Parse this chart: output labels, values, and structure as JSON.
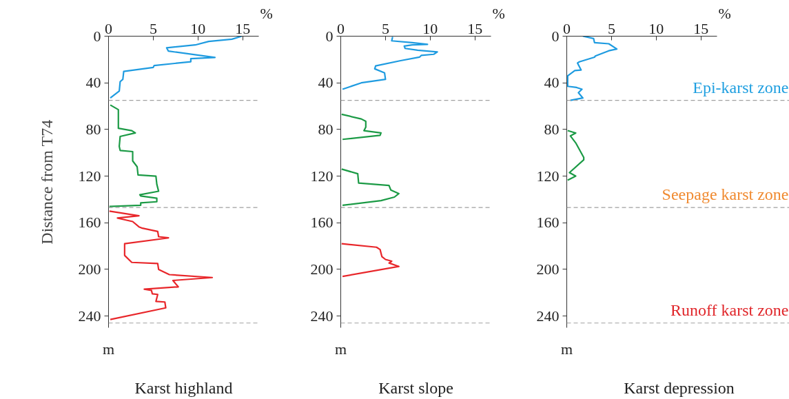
{
  "chart_data": [
    {
      "type": "line",
      "xlabel": "Karst highland",
      "ylabel": "Distance from T74",
      "xlim": [
        0,
        16.8
      ],
      "ylim": [
        250,
        0
      ],
      "xticks": [
        0,
        5,
        10,
        15
      ],
      "yticks": [
        0,
        40,
        80,
        120,
        160,
        200,
        240
      ],
      "grid": false,
      "line_style": "solid",
      "marker": "none",
      "annotations": [
        "%",
        "m"
      ],
      "ref_lines": [
        {
          "axis": "y",
          "value": 55,
          "color": "#a0a0a0",
          "line_style": "dashed"
        },
        {
          "axis": "y",
          "value": 147,
          "color": "#a0a0a0",
          "line_style": "dashed"
        },
        {
          "axis": "y",
          "value": 246,
          "color": "#a0a0a0",
          "line_style": "dashed"
        }
      ],
      "series": [
        {
          "color": "#1e9be0",
          "x": [
            14.9,
            13.8,
            11.2,
            9.7,
            6.5,
            6.7,
            11.9,
            9.2,
            9.2,
            5.1,
            5.0,
            1.7,
            1.6,
            1.3,
            1.2,
            0.2
          ],
          "values": [
            0,
            2.6,
            4.5,
            7.5,
            10,
            12.8,
            18.3,
            19.3,
            21.9,
            25.2,
            26.8,
            30.2,
            37,
            39,
            47,
            53
          ]
        },
        {
          "color": "#1b9a45",
          "x": [
            0.2,
            1.1,
            1.1,
            2.6,
            3.0,
            1.3,
            1.2,
            1.3,
            2.7,
            2.7,
            3.2,
            3.3,
            5.3,
            5.4,
            5.6,
            3.5,
            3.6,
            5.4,
            5.4,
            3.6,
            3.6,
            0.1
          ],
          "values": [
            59,
            63,
            79,
            81,
            83,
            86,
            94.5,
            98,
            99,
            107,
            112,
            119,
            120,
            127,
            133,
            136,
            137,
            139,
            142,
            143,
            145,
            146
          ]
        },
        {
          "color": "#e8262a",
          "x": [
            0.1,
            3.4,
            1.0,
            2.7,
            3.4,
            3.7,
            5.5,
            5.6,
            6.7,
            1.8,
            1.8,
            2.6,
            5.5,
            5.6,
            6.8,
            11.6,
            7.2,
            7.8,
            4.0,
            4.8,
            4.9,
            5.5,
            5.3,
            6.3,
            6.4,
            0.2
          ],
          "values": [
            150,
            154,
            156,
            159,
            163.5,
            164.5,
            167.5,
            172,
            173,
            178,
            188,
            194,
            195,
            200,
            204.5,
            207,
            209.5,
            215,
            217,
            218,
            221,
            221.5,
            227.5,
            228,
            233,
            243
          ]
        }
      ]
    },
    {
      "type": "line",
      "xlabel": "Karst slope",
      "xlim": [
        0,
        16.8
      ],
      "ylim": [
        250,
        0
      ],
      "xticks": [
        0,
        5,
        10,
        15
      ],
      "yticks": [
        0,
        40,
        80,
        120,
        160,
        200,
        240
      ],
      "grid": false,
      "line_style": "solid",
      "marker": "none",
      "annotations": [
        "%",
        "m"
      ],
      "ref_lines": [
        {
          "axis": "y",
          "value": 55,
          "color": "#a0a0a0",
          "line_style": "dashed"
        },
        {
          "axis": "y",
          "value": 147,
          "color": "#a0a0a0",
          "line_style": "dashed"
        },
        {
          "axis": "y",
          "value": 246,
          "color": "#a0a0a0",
          "line_style": "dashed"
        }
      ],
      "series": [
        {
          "color": "#1e9be0",
          "x": [
            5.8,
            5.7,
            8.0,
            9.7,
            8.0,
            7.1,
            7.2,
            8.6,
            10.8,
            10.4,
            9.0,
            8.8,
            6.7,
            3.9,
            3.8,
            4.9,
            5.0,
            2.3,
            0.2
          ],
          "values": [
            0.6,
            4,
            5.5,
            7,
            7.5,
            8.5,
            10.5,
            12,
            13.5,
            15.5,
            16.5,
            18,
            21,
            25.5,
            28,
            31.5,
            37,
            40,
            45.5
          ]
        },
        {
          "color": "#1b9a45",
          "x": [
            0.1,
            2.3,
            2.8,
            2.8,
            2.6,
            4.5,
            4.4,
            0.2,
            null,
            0.1,
            1.9,
            2.0,
            5.4,
            5.6,
            6.5,
            6.0,
            4.5,
            0.2
          ],
          "values": [
            67,
            71,
            73,
            78,
            81,
            83,
            85,
            88.5,
            null,
            114,
            118,
            126,
            128,
            132,
            135,
            138,
            141,
            145
          ]
        },
        {
          "color": "#e8262a",
          "x": [
            0.1,
            4.0,
            4.4,
            4.6,
            5.0,
            5.7,
            5.4,
            6.5,
            0.2
          ],
          "values": [
            178,
            181,
            183,
            189,
            191.5,
            193,
            194.5,
            197.5,
            206
          ]
        }
      ]
    },
    {
      "type": "line",
      "xlabel": "Karst depression",
      "xlim": [
        0,
        16.8
      ],
      "ylim": [
        250,
        0
      ],
      "xticks": [
        0,
        5,
        10,
        15
      ],
      "yticks": [
        0,
        40,
        80,
        120,
        160,
        200,
        240
      ],
      "grid": false,
      "line_style": "solid",
      "marker": "none",
      "annotations": [
        "%",
        "m"
      ],
      "ref_lines": [
        {
          "axis": "y",
          "value": 55,
          "color": "#a0a0a0",
          "line_style": "dashed",
          "label": "Epi-karst zone"
        },
        {
          "axis": "y",
          "value": 147,
          "color": "#a0a0a0",
          "line_style": "dashed",
          "label": "Seepage karst zone"
        },
        {
          "axis": "y",
          "value": 246,
          "color": "#a0a0a0",
          "line_style": "dashed",
          "label": "Runoff karst zone"
        }
      ],
      "series": [
        {
          "color": "#1e9be0",
          "x": [
            1.8,
            3.0,
            3.1,
            4.7,
            5.6,
            4.7,
            3.2,
            3.1,
            1.4,
            1.2,
            1.6,
            0.9,
            0.1,
            0.1,
            0.1,
            1.1,
            1.7,
            1.3,
            1.8,
            0.4
          ],
          "values": [
            0,
            2,
            5.5,
            6.5,
            11,
            12.5,
            17,
            18,
            22,
            23,
            29,
            29.5,
            34,
            39.5,
            43,
            44,
            45.5,
            48.5,
            53,
            55
          ]
        },
        {
          "color": "#1b9a45",
          "x": [
            0.1,
            1.0,
            0.4,
            1.0,
            1.9,
            1.9,
            0.3,
            1.0,
            0.1
          ],
          "values": [
            81,
            83,
            85.5,
            91.5,
            104,
            106,
            117,
            120,
            123.5
          ]
        }
      ]
    }
  ]
}
